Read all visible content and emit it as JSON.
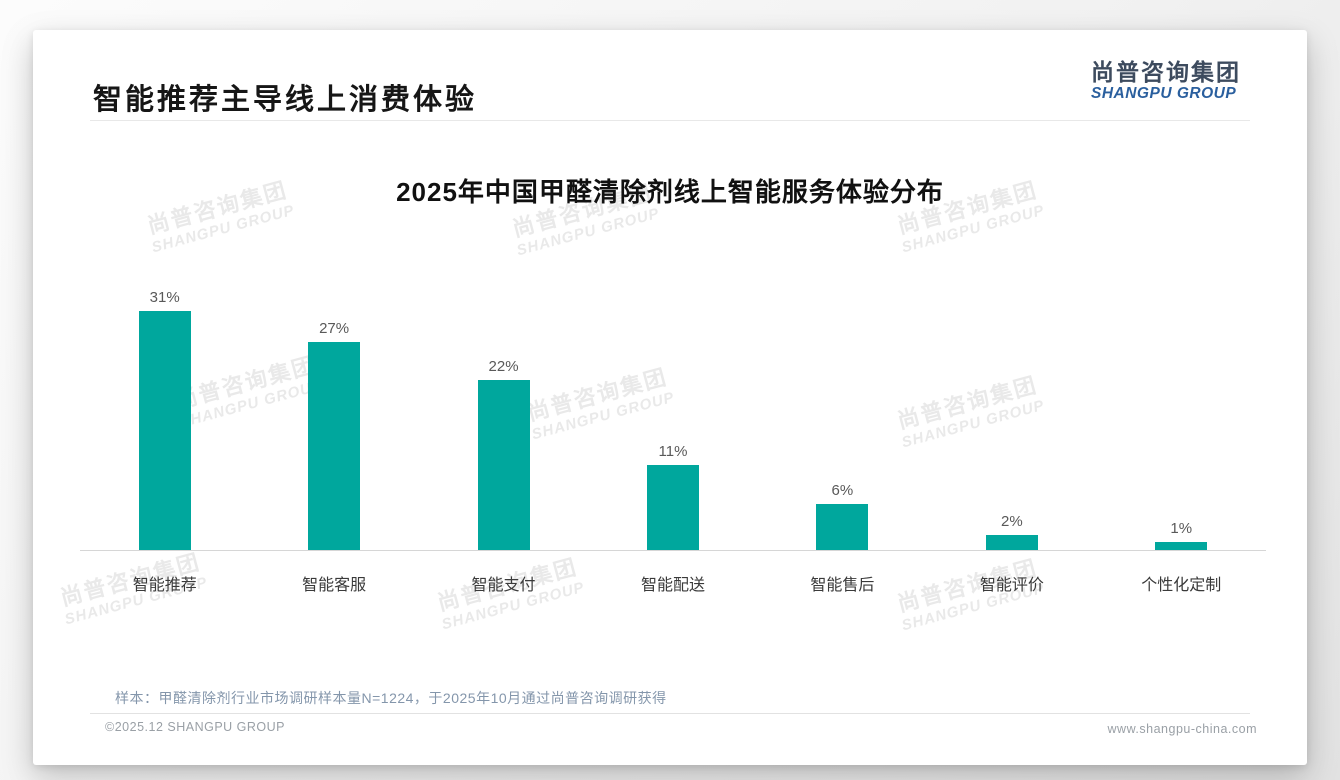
{
  "header": {
    "title": "智能推荐主导线上消费体验"
  },
  "logo": {
    "zh": "尚普咨询集团",
    "en": "SHANGPU GROUP"
  },
  "chart_data": {
    "type": "bar",
    "title": "2025年中国甲醛清除剂线上智能服务体验分布",
    "categories": [
      "智能推荐",
      "智能客服",
      "智能支付",
      "智能配送",
      "智能售后",
      "智能评价",
      "个性化定制"
    ],
    "values": [
      31,
      27,
      22,
      11,
      6,
      2,
      1
    ],
    "value_labels": [
      "31%",
      "27%",
      "22%",
      "11%",
      "6%",
      "2%",
      "1%"
    ],
    "unit": "%",
    "bar_color": "#00a79d",
    "ylim": [
      0,
      31
    ],
    "grid": false,
    "legend": false,
    "xlabel": "",
    "ylabel": ""
  },
  "watermark": {
    "line1": "尚普咨询集团",
    "line2": "SHANGPU GROUP"
  },
  "note": "样本：甲醛清除剂行业市场调研样本量N=1224，于2025年10月通过尚普咨询调研获得",
  "footer": {
    "left": "©2025.12 SHANGPU GROUP",
    "right": "www.shangpu-china.com"
  }
}
